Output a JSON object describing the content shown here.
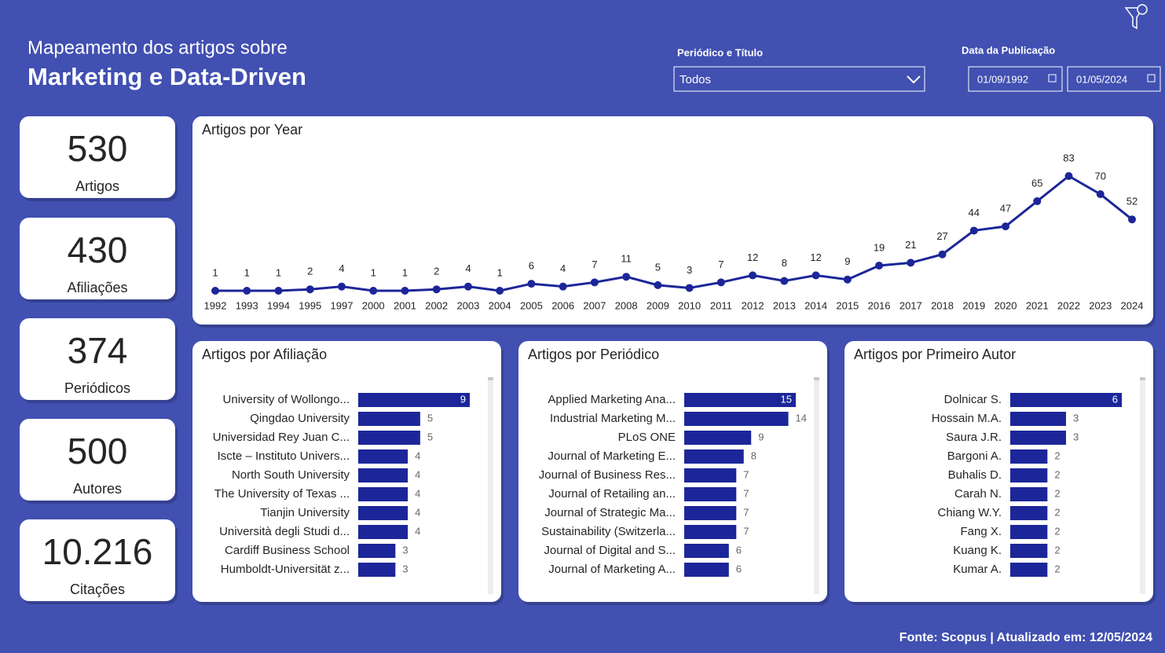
{
  "header": {
    "subtitle": "Mapeamento dos artigos sobre",
    "title": "Marketing e Data-Driven"
  },
  "filters": {
    "journal": {
      "label": "Periódico e Título",
      "value": "Todos"
    },
    "date": {
      "label": "Data da Publicação",
      "start": "01/09/1992",
      "end": "01/05/2024"
    }
  },
  "kpis": [
    {
      "value": "530",
      "label": "Artigos"
    },
    {
      "value": "430",
      "label": "Afiliações"
    },
    {
      "value": "374",
      "label": "Periódicos"
    },
    {
      "value": "500",
      "label": "Autores"
    },
    {
      "value": "10.216",
      "label": "Citações"
    }
  ],
  "footer": "Fonte: Scopus | Atualizado em: 12/05/2024",
  "chart_data": [
    {
      "type": "line",
      "title": "Artigos por Year",
      "color": "#1c2699",
      "categories": [
        "1992",
        "1993",
        "1994",
        "1995",
        "1997",
        "2000",
        "2001",
        "2002",
        "2003",
        "2004",
        "2005",
        "2006",
        "2007",
        "2008",
        "2009",
        "2010",
        "2011",
        "2012",
        "2013",
        "2014",
        "2015",
        "2016",
        "2017",
        "2018",
        "2019",
        "2020",
        "2021",
        "2022",
        "2023",
        "2024"
      ],
      "values": [
        1,
        1,
        1,
        2,
        4,
        1,
        1,
        2,
        4,
        1,
        6,
        4,
        7,
        11,
        5,
        3,
        7,
        12,
        8,
        12,
        9,
        19,
        21,
        27,
        44,
        47,
        65,
        83,
        70,
        52
      ]
    },
    {
      "type": "bar",
      "title": "Artigos por Afiliação",
      "color": "#1c2699",
      "categories": [
        "University of Wollongo...",
        "Qingdao University",
        "Universidad Rey Juan C...",
        "Iscte – Instituto Univers...",
        "North South University",
        "The University of Texas ...",
        "Tianjin University",
        "Università degli Studi d...",
        "Cardiff Business School",
        "Humboldt-Universität z..."
      ],
      "values": [
        9,
        5,
        5,
        4,
        4,
        4,
        4,
        4,
        3,
        3
      ]
    },
    {
      "type": "bar",
      "title": "Artigos por Periódico",
      "color": "#1c2699",
      "categories": [
        "Applied Marketing Ana...",
        "Industrial Marketing M...",
        "PLoS ONE",
        "Journal of Marketing E...",
        "Journal of Business Res...",
        "Journal of Retailing an...",
        "Journal of Strategic Ma...",
        "Sustainability (Switzerla...",
        "Journal of Digital and S...",
        "Journal of Marketing A..."
      ],
      "values": [
        15,
        14,
        9,
        8,
        7,
        7,
        7,
        7,
        6,
        6
      ]
    },
    {
      "type": "bar",
      "title": "Artigos por Primeiro Autor",
      "color": "#1c2699",
      "categories": [
        "Dolnicar S.",
        "Hossain M.A.",
        "Saura J.R.",
        "Bargoni A.",
        "Buhalis D.",
        "Carah N.",
        "Chiang W.Y.",
        "Fang X.",
        "Kuang K.",
        "Kumar A."
      ],
      "values": [
        6,
        3,
        3,
        2,
        2,
        2,
        2,
        2,
        2,
        2
      ]
    }
  ]
}
